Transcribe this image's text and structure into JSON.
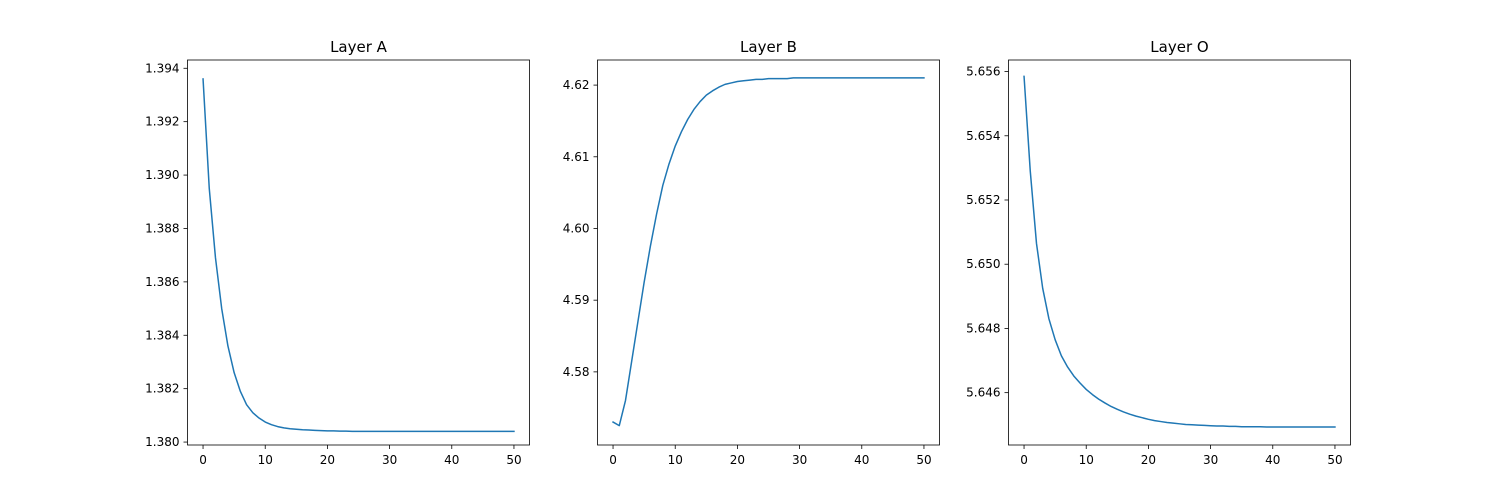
{
  "chart_data": [
    {
      "type": "line",
      "title": "Layer A",
      "xlabel": "",
      "ylabel": "",
      "xlim": [
        -2.5,
        52.5
      ],
      "ylim": [
        1.37989,
        1.39431
      ],
      "xticks": [
        0,
        10,
        20,
        30,
        40,
        50
      ],
      "yticks": [
        1.38,
        1.382,
        1.384,
        1.386,
        1.388,
        1.39,
        1.392,
        1.394
      ],
      "ytick_decimals": 3,
      "grid": false,
      "color": "#1f77b4",
      "series": [
        {
          "x": [
            0,
            1,
            2,
            3,
            4,
            5,
            6,
            7,
            8,
            9,
            10,
            11,
            12,
            13,
            14,
            15,
            16,
            17,
            18,
            19,
            20,
            21,
            22,
            23,
            24,
            25,
            26,
            27,
            28,
            29,
            30,
            31,
            32,
            33,
            34,
            35,
            36,
            37,
            38,
            39,
            40,
            41,
            42,
            43,
            44,
            45,
            46,
            47,
            48,
            49,
            50
          ],
          "values": [
            1.3936,
            1.3895,
            1.3869,
            1.385,
            1.3836,
            1.3826,
            1.3819,
            1.3814,
            1.3811,
            1.3809,
            1.38075,
            1.38065,
            1.38058,
            1.38053,
            1.3805,
            1.38048,
            1.38046,
            1.38045,
            1.38044,
            1.38043,
            1.38042,
            1.38042,
            1.38041,
            1.38041,
            1.3804,
            1.3804,
            1.3804,
            1.3804,
            1.3804,
            1.3804,
            1.3804,
            1.3804,
            1.3804,
            1.3804,
            1.3804,
            1.3804,
            1.3804,
            1.3804,
            1.3804,
            1.3804,
            1.3804,
            1.3804,
            1.3804,
            1.3804,
            1.3804,
            1.3804,
            1.3804,
            1.3804,
            1.3804,
            1.3804,
            1.3804
          ]
        }
      ]
    },
    {
      "type": "line",
      "title": "Layer B",
      "xlabel": "",
      "ylabel": "",
      "xlim": [
        -2.5,
        52.5
      ],
      "ylim": [
        4.5698,
        4.6235
      ],
      "xticks": [
        0,
        10,
        20,
        30,
        40,
        50
      ],
      "yticks": [
        4.58,
        4.59,
        4.6,
        4.61,
        4.62
      ],
      "ytick_decimals": 2,
      "grid": false,
      "color": "#1f77b4",
      "series": [
        {
          "x": [
            0,
            1,
            2,
            3,
            4,
            5,
            6,
            7,
            8,
            9,
            10,
            11,
            12,
            13,
            14,
            15,
            16,
            17,
            18,
            19,
            20,
            21,
            22,
            23,
            24,
            25,
            26,
            27,
            28,
            29,
            30,
            31,
            32,
            33,
            34,
            35,
            36,
            37,
            38,
            39,
            40,
            41,
            42,
            43,
            44,
            45,
            46,
            47,
            48,
            49,
            50
          ],
          "values": [
            4.573,
            4.5725,
            4.576,
            4.5815,
            4.587,
            4.5925,
            4.5975,
            4.602,
            4.606,
            4.609,
            4.6115,
            4.6135,
            4.6152,
            4.6166,
            4.6177,
            4.6186,
            4.6192,
            4.6197,
            4.6201,
            4.6203,
            4.6205,
            4.6206,
            4.6207,
            4.6208,
            4.6208,
            4.6209,
            4.6209,
            4.6209,
            4.6209,
            4.621,
            4.621,
            4.621,
            4.621,
            4.621,
            4.621,
            4.621,
            4.621,
            4.621,
            4.621,
            4.621,
            4.621,
            4.621,
            4.621,
            4.621,
            4.621,
            4.621,
            4.621,
            4.621,
            4.621,
            4.621,
            4.621
          ]
        }
      ]
    },
    {
      "type": "line",
      "title": "Layer O",
      "xlabel": "",
      "ylabel": "",
      "xlim": [
        -2.5,
        52.5
      ],
      "ylim": [
        5.64437,
        5.65636
      ],
      "xticks": [
        0,
        10,
        20,
        30,
        40,
        50
      ],
      "yticks": [
        5.646,
        5.648,
        5.65,
        5.652,
        5.654,
        5.656
      ],
      "ytick_decimals": 3,
      "grid": false,
      "color": "#1f77b4",
      "series": [
        {
          "x": [
            0,
            1,
            2,
            3,
            4,
            5,
            6,
            7,
            8,
            9,
            10,
            11,
            12,
            13,
            14,
            15,
            16,
            17,
            18,
            19,
            20,
            21,
            22,
            23,
            24,
            25,
            26,
            27,
            28,
            29,
            30,
            31,
            32,
            33,
            34,
            35,
            36,
            37,
            38,
            39,
            40,
            41,
            42,
            43,
            44,
            45,
            46,
            47,
            48,
            49,
            50
          ],
          "values": [
            5.65585,
            5.6529,
            5.65065,
            5.64925,
            5.6483,
            5.64765,
            5.64715,
            5.6468,
            5.64652,
            5.6463,
            5.6461,
            5.64594,
            5.6458,
            5.64568,
            5.64557,
            5.64548,
            5.6454,
            5.64533,
            5.64527,
            5.64522,
            5.64517,
            5.64513,
            5.6451,
            5.64507,
            5.64505,
            5.64503,
            5.64501,
            5.645,
            5.64499,
            5.64498,
            5.64497,
            5.64496,
            5.64496,
            5.64495,
            5.64495,
            5.64494,
            5.64494,
            5.64494,
            5.64494,
            5.64493,
            5.64493,
            5.64493,
            5.64493,
            5.64493,
            5.64493,
            5.64493,
            5.64493,
            5.64493,
            5.64493,
            5.64493,
            5.64493
          ]
        }
      ]
    }
  ]
}
